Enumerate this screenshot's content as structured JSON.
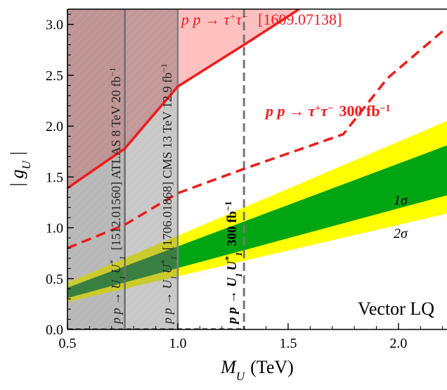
{
  "chart_data": {
    "type": "line",
    "title": "",
    "xlabel": "M_U (TeV)",
    "xlabel_parts": {
      "symbol": "M",
      "subscript": "U",
      "unit": "(TeV)"
    },
    "ylabel": "|g_U|",
    "ylabel_parts": {
      "left": "|",
      "symbol": "g",
      "subscript": "U",
      "right": "|"
    },
    "xlim": [
      0.5,
      2.22
    ],
    "ylim": [
      0.0,
      3.15
    ],
    "xticks": [
      0.5,
      1.0,
      1.5,
      2.0
    ],
    "xtick_labels": [
      "0.5",
      "1.0",
      "1.5",
      "2.0"
    ],
    "yticks": [
      0.0,
      0.5,
      1.0,
      1.5,
      2.0,
      2.5,
      3.0
    ],
    "ytick_labels": [
      "0.0",
      "0.5",
      "1.0",
      "1.5",
      "2.0",
      "2.5",
      "3.0"
    ],
    "grid": false,
    "legend": "none",
    "corner_label": "Vector LQ",
    "series": [
      {
        "name": "p p → τ+τ− [1609.07138]",
        "style": "solid",
        "color": "#ee1c1c",
        "x": [
          0.5,
          0.76,
          1.0,
          1.3,
          1.55
        ],
        "y": [
          1.39,
          1.78,
          2.39,
          2.8,
          3.15
        ]
      },
      {
        "name": "p p → τ+τ− 300 fb−1",
        "style": "dashed",
        "color": "#ee1c1c",
        "x": [
          0.5,
          0.76,
          1.0,
          1.3,
          1.75,
          1.95,
          2.22
        ],
        "y": [
          0.8,
          1.03,
          1.34,
          1.58,
          1.92,
          2.47,
          2.97
        ]
      }
    ],
    "bands": [
      {
        "name": "2σ",
        "color": "#ffff00",
        "x": [
          0.5,
          2.22
        ],
        "lower": [
          0.27,
          1.14
        ],
        "upper": [
          0.46,
          2.05
        ]
      },
      {
        "name": "1σ",
        "color": "#00a612",
        "x": [
          0.5,
          2.22
        ],
        "lower": [
          0.31,
          1.32
        ],
        "upper": [
          0.41,
          1.81
        ]
      }
    ],
    "excluded_regions": [
      {
        "name": "p p → U1 U1* [1512.01560] ATLAS 8 TeV 20 fb−1",
        "x_max": 0.76,
        "color": "#b8b8b8"
      },
      {
        "name": "p p → U1 U1* [1706.01868] CMS 13 TeV 12.9 fb−1",
        "x_max": 1.0,
        "color": "#c8c8c8"
      },
      {
        "name": "p p → τ+τ− excluded",
        "above_series": 0,
        "color": "#ffc0c0"
      }
    ],
    "vertical_lines": [
      {
        "name": "p p → U1 U1* 300 fb−1",
        "x": 1.3,
        "style": "dashed",
        "color": "#777777"
      }
    ],
    "annotations": {
      "tautau_current": {
        "process": "p p → τ",
        "tail": "[1609.07138]"
      },
      "tautau_300": {
        "process": "p p → τ",
        "tail": "300 fb",
        "exp": "−1"
      },
      "atlas": {
        "process": "p p → U",
        "tail": "[1512.01560] ATLAS 8 TeV 20 fb",
        "exp": "−1"
      },
      "cms": {
        "process": "p p → U",
        "tail": "[1706.01868] CMS 13 TeV 12.9 fb",
        "exp": "−1"
      },
      "hllhc": {
        "process": "p p → U",
        "tail": "300 fb",
        "exp": "−1"
      },
      "one_sigma": "1σ",
      "two_sigma": "2σ"
    }
  }
}
